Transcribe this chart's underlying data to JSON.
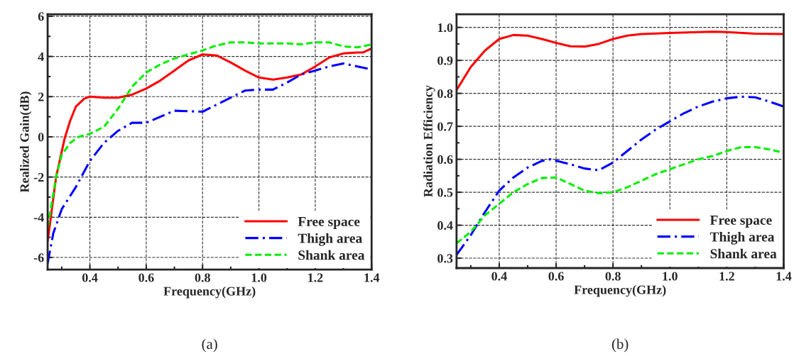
{
  "chart_data": [
    {
      "type": "line",
      "xlabel": "Frequency(GHz)",
      "ylabel": "Realized Gain(dB)",
      "xlim": [
        0.25,
        1.4
      ],
      "ylim": [
        -6.6,
        6.1
      ],
      "xticks": [
        0.4,
        0.6,
        0.8,
        {
          "value": 1,
          "label": "1.0"
        },
        1.2,
        1.4
      ],
      "yticks": [
        -6,
        -4,
        -2,
        0,
        2,
        4,
        6
      ],
      "grid": true,
      "legend": "bottom right",
      "annotations": [
        "(a)"
      ],
      "series": [
        {
          "name": "Free space",
          "color": "#ff0000",
          "line_style": "solid",
          "x": [
            0.25,
            0.28,
            0.31,
            0.33,
            0.35,
            0.38,
            0.4,
            0.45,
            0.5,
            0.55,
            0.6,
            0.65,
            0.7,
            0.75,
            0.8,
            0.85,
            0.9,
            0.95,
            1.0,
            1.05,
            1.1,
            1.15,
            1.2,
            1.25,
            1.3,
            1.35,
            1.37,
            1.4
          ],
          "values": [
            -5.2,
            -2.0,
            -0.1,
            0.8,
            1.5,
            1.9,
            2.0,
            1.95,
            1.95,
            2.1,
            2.4,
            2.8,
            3.3,
            3.8,
            4.1,
            4.05,
            3.7,
            3.3,
            2.95,
            2.85,
            2.95,
            3.1,
            3.5,
            3.95,
            4.15,
            4.2,
            4.2,
            4.4
          ]
        },
        {
          "name": "Thigh area",
          "color": "#0000ff",
          "line_style": "dashdot",
          "x": [
            0.25,
            0.27,
            0.3,
            0.35,
            0.4,
            0.45,
            0.5,
            0.55,
            0.6,
            0.65,
            0.7,
            0.8,
            0.85,
            0.9,
            0.95,
            1.0,
            1.05,
            1.1,
            1.15,
            1.2,
            1.25,
            1.3,
            1.35,
            1.4
          ],
          "values": [
            -6.3,
            -4.8,
            -3.6,
            -2.5,
            -1.2,
            -0.3,
            0.3,
            0.7,
            0.7,
            1.0,
            1.3,
            1.25,
            1.6,
            1.95,
            2.3,
            2.35,
            2.35,
            2.7,
            3.1,
            3.3,
            3.5,
            3.65,
            3.5,
            3.35
          ]
        },
        {
          "name": "Shank area",
          "color": "#00ee00",
          "line_style": "dashed",
          "x": [
            0.25,
            0.28,
            0.3,
            0.33,
            0.36,
            0.4,
            0.45,
            0.5,
            0.55,
            0.6,
            0.65,
            0.7,
            0.75,
            0.8,
            0.85,
            0.9,
            0.95,
            1.0,
            1.05,
            1.1,
            1.15,
            1.2,
            1.25,
            1.3,
            1.35,
            1.4
          ],
          "values": [
            -4.5,
            -2.0,
            -0.9,
            -0.3,
            0.0,
            0.15,
            0.5,
            1.4,
            2.5,
            3.2,
            3.6,
            3.9,
            4.1,
            4.3,
            4.55,
            4.7,
            4.7,
            4.65,
            4.65,
            4.65,
            4.6,
            4.7,
            4.7,
            4.5,
            4.45,
            4.6
          ]
        }
      ]
    },
    {
      "type": "line",
      "xlabel": "Frequency(GHz)",
      "ylabel": "Radiation Efficiency",
      "xlim": [
        0.25,
        1.4
      ],
      "ylim": [
        0.27,
        1.04
      ],
      "xticks": [
        0.4,
        0.6,
        0.8,
        {
          "value": 1,
          "label": "1.0"
        },
        1.2,
        1.4
      ],
      "yticks": [
        0.3,
        0.4,
        0.5,
        0.6,
        0.7,
        0.8,
        0.9,
        {
          "value": 1,
          "label": "1.0"
        }
      ],
      "grid": true,
      "legend": "bottom right",
      "annotations": [
        "(b)"
      ],
      "series": [
        {
          "name": "Free space",
          "color": "#ff0000",
          "line_style": "solid",
          "x": [
            0.25,
            0.3,
            0.35,
            0.4,
            0.45,
            0.5,
            0.55,
            0.6,
            0.65,
            0.7,
            0.75,
            0.8,
            0.85,
            0.9,
            1.0,
            1.1,
            1.15,
            1.2,
            1.3,
            1.4
          ],
          "values": [
            0.81,
            0.88,
            0.93,
            0.965,
            0.977,
            0.975,
            0.965,
            0.953,
            0.943,
            0.942,
            0.95,
            0.965,
            0.975,
            0.98,
            0.983,
            0.986,
            0.987,
            0.986,
            0.981,
            0.98
          ]
        },
        {
          "name": "Thigh area",
          "color": "#0000ff",
          "line_style": "dashdot",
          "x": [
            0.25,
            0.3,
            0.35,
            0.4,
            0.45,
            0.5,
            0.55,
            0.58,
            0.65,
            0.7,
            0.75,
            0.8,
            0.85,
            0.9,
            0.95,
            1.0,
            1.05,
            1.1,
            1.15,
            1.2,
            1.25,
            1.3,
            1.35,
            1.4
          ],
          "values": [
            0.31,
            0.37,
            0.44,
            0.505,
            0.545,
            0.575,
            0.595,
            0.6,
            0.585,
            0.572,
            0.567,
            0.59,
            0.625,
            0.66,
            0.69,
            0.715,
            0.74,
            0.76,
            0.775,
            0.785,
            0.79,
            0.788,
            0.775,
            0.76
          ]
        },
        {
          "name": "Shank area",
          "color": "#00ee00",
          "line_style": "dashed",
          "x": [
            0.25,
            0.3,
            0.35,
            0.4,
            0.45,
            0.5,
            0.55,
            0.6,
            0.65,
            0.7,
            0.75,
            0.8,
            0.85,
            0.9,
            0.95,
            1.0,
            1.05,
            1.1,
            1.15,
            1.2,
            1.25,
            1.3,
            1.35,
            1.4
          ],
          "values": [
            0.345,
            0.38,
            0.43,
            0.465,
            0.5,
            0.525,
            0.543,
            0.545,
            0.525,
            0.505,
            0.497,
            0.5,
            0.515,
            0.535,
            0.555,
            0.57,
            0.585,
            0.6,
            0.61,
            0.625,
            0.637,
            0.637,
            0.63,
            0.62
          ]
        }
      ]
    }
  ]
}
